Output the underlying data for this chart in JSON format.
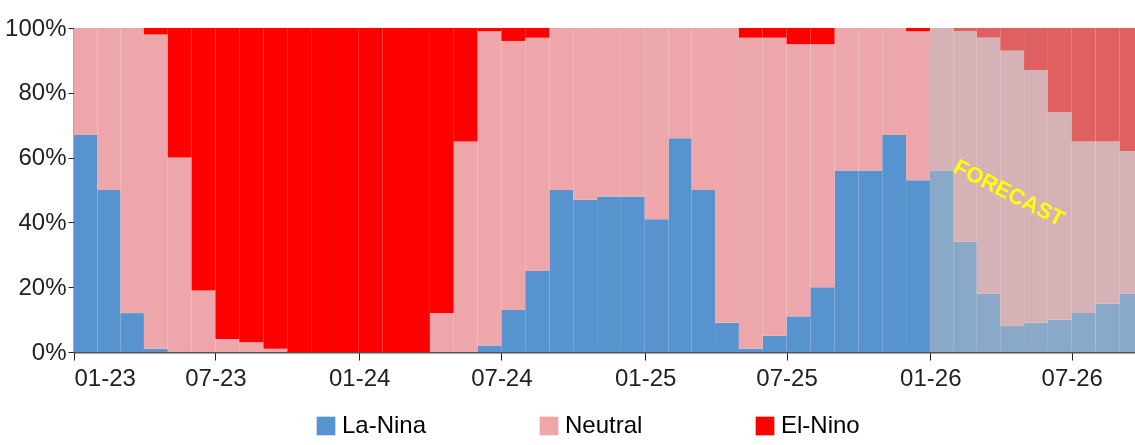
{
  "chart_data": {
    "type": "bar",
    "stacked": true,
    "x": [
      "2023-01-16",
      "2023-02-15",
      "2023-03-16",
      "2023-04-16",
      "2023-05-16",
      "2023-06-16",
      "2023-07-16",
      "2023-08-16",
      "2023-09-16",
      "2023-10-16",
      "2023-11-16",
      "2023-12-16",
      "2024-01-16",
      "2024-02-15",
      "2024-03-16",
      "2024-04-16",
      "2024-05-16",
      "2024-06-16",
      "2024-07-16",
      "2024-08-16",
      "2024-09-16",
      "2024-10-16",
      "2024-11-16",
      "2024-12-16",
      "2025-01-16",
      "2025-02-15",
      "2025-03-16",
      "2025-04-16",
      "2025-05-16",
      "2025-06-16",
      "2025-07-16",
      "2025-08-16",
      "2025-09-16",
      "2025-10-16",
      "2025-11-16",
      "2025-12-16",
      "2026-01-16",
      "2026-02-15",
      "2026-03-16",
      "2026-04-16",
      "2026-05-16",
      "2026-06-16",
      "2026-07-16",
      "2026-08-16",
      "2026-09-16"
    ],
    "series": [
      {
        "name": "La-Nina",
        "color": "#5693cf",
        "colors": [
          "#5693cf",
          "#5693cf",
          "#5693cf",
          "#5693cf",
          "#5693cf",
          "#5693cf",
          "#5693cf",
          "#5693cf",
          "#5693cf",
          "#5693cf",
          "#5693cf",
          "#5693cf",
          "#5693cf",
          "#5693cf",
          "#5693cf",
          "#5693cf",
          "#5693cf",
          "#5693cf",
          "#5693cf",
          "#5693cf",
          "#5693cf",
          "#5693cf",
          "#5693cf",
          "#5693cf",
          "#5693cf",
          "#5693cf",
          "#5693cf",
          "#5693cf",
          "#5693cf",
          "#5693cf",
          "#5693cf",
          "#5693cf",
          "#5693cf",
          "#5693cf",
          "#5693cf",
          "#5693cf",
          "#8aa8c7",
          "#8aa8c7",
          "#8aa8c7",
          "#8aa8c7",
          "#8aa8c7",
          "#8aa8c7",
          "#8aa8c7",
          "#8aa8c7",
          "#8aa8c7"
        ],
        "values": [
          67,
          50,
          12,
          1,
          0,
          0,
          0,
          0,
          0,
          0,
          0,
          0,
          0,
          0,
          0,
          0,
          0,
          2,
          13,
          25,
          50,
          47,
          48,
          48,
          41,
          66,
          50,
          9,
          1,
          5,
          11,
          20,
          56,
          56,
          67,
          53,
          56,
          34,
          18,
          8,
          9,
          10,
          12,
          15,
          18
        ]
      },
      {
        "name": "Neutral",
        "color": "#eda6aa",
        "colors": [
          "#eda6aa",
          "#eda6aa",
          "#eda6aa",
          "#eda6aa",
          "#eda6aa",
          "#eda6aa",
          "#eda6aa",
          "#eda6aa",
          "#eda6aa",
          "#eda6aa",
          "#eda6aa",
          "#eda6aa",
          "#eda6aa",
          "#eda6aa",
          "#eda6aa",
          "#eda6aa",
          "#eda6aa",
          "#eda6aa",
          "#eda6aa",
          "#eda6aa",
          "#eda6aa",
          "#eda6aa",
          "#eda6aa",
          "#eda6aa",
          "#eda6aa",
          "#eda6aa",
          "#eda6aa",
          "#eda6aa",
          "#eda6aa",
          "#eda6aa",
          "#eda6aa",
          "#eda6aa",
          "#eda6aa",
          "#eda6aa",
          "#eda6aa",
          "#eda6aa",
          "#d5b2b5",
          "#d5b2b5",
          "#d5b2b5",
          "#d5b2b5",
          "#d5b2b5",
          "#d5b2b5",
          "#d5b2b5",
          "#d5b2b5",
          "#d5b2b5"
        ],
        "values": [
          33,
          50,
          88,
          97,
          60,
          19,
          4,
          3,
          1,
          0,
          0,
          0,
          0,
          0,
          0,
          12,
          65,
          97,
          83,
          72,
          50,
          53,
          52,
          52,
          59,
          34,
          50,
          91,
          96,
          92,
          84,
          75,
          44,
          44,
          33,
          46,
          44,
          65,
          79,
          85,
          78,
          64,
          53,
          50,
          44
        ]
      },
      {
        "name": "El-Nino",
        "color": "#ff0000",
        "colors": [
          "#ff0000",
          "#ff0000",
          "#ff0000",
          "#ff0000",
          "#ff0000",
          "#ff0000",
          "#ff0000",
          "#ff0000",
          "#ff0000",
          "#ff0000",
          "#ff0000",
          "#ff0000",
          "#ff0000",
          "#ff0000",
          "#ff0000",
          "#ff0000",
          "#ff0000",
          "#ff0000",
          "#ff0000",
          "#ff0000",
          "#ff0000",
          "#ff0000",
          "#ff0000",
          "#ff0000",
          "#ff0000",
          "#ff0000",
          "#ff0000",
          "#ff0000",
          "#ff0000",
          "#ff0000",
          "#ff0000",
          "#ff0000",
          "#ff0000",
          "#ff0000",
          "#ff0000",
          "#ff0000",
          "#de6060",
          "#de6060",
          "#de6060",
          "#de6060",
          "#de6060",
          "#de6060",
          "#de6060",
          "#de6060",
          "#de6060"
        ],
        "values": [
          0,
          0,
          0,
          2,
          40,
          81,
          96,
          97,
          99,
          100,
          100,
          100,
          100,
          100,
          100,
          88,
          35,
          1,
          4,
          3,
          0,
          0,
          0,
          0,
          0,
          0,
          0,
          0,
          3,
          3,
          5,
          5,
          0,
          0,
          0,
          1,
          0,
          1,
          3,
          7,
          13,
          26,
          35,
          35,
          38
        ]
      }
    ],
    "xlim": [
      "2023-01-01",
      "2026-09-20"
    ],
    "xticks": [
      {
        "value": "2023-01",
        "label": "01-23"
      },
      {
        "value": "2023-07",
        "label": "07-23"
      },
      {
        "value": "2024-01",
        "label": "01-24"
      },
      {
        "value": "2024-07",
        "label": "07-24"
      },
      {
        "value": "2025-01",
        "label": "01-25"
      },
      {
        "value": "2025-07",
        "label": "07-25"
      },
      {
        "value": "2026-01",
        "label": "01-26"
      },
      {
        "value": "2026-07",
        "label": "07-26"
      }
    ],
    "ylim": [
      0,
      100
    ],
    "yticks": [
      {
        "value": 0,
        "label": "0%"
      },
      {
        "value": 20,
        "label": "20%"
      },
      {
        "value": 40,
        "label": "40%"
      },
      {
        "value": 60,
        "label": "60%"
      },
      {
        "value": 80,
        "label": "80%"
      },
      {
        "value": 100,
        "label": "100%"
      }
    ],
    "annotations": [
      "FORECAST"
    ],
    "legend": "bottom",
    "grid": false
  }
}
